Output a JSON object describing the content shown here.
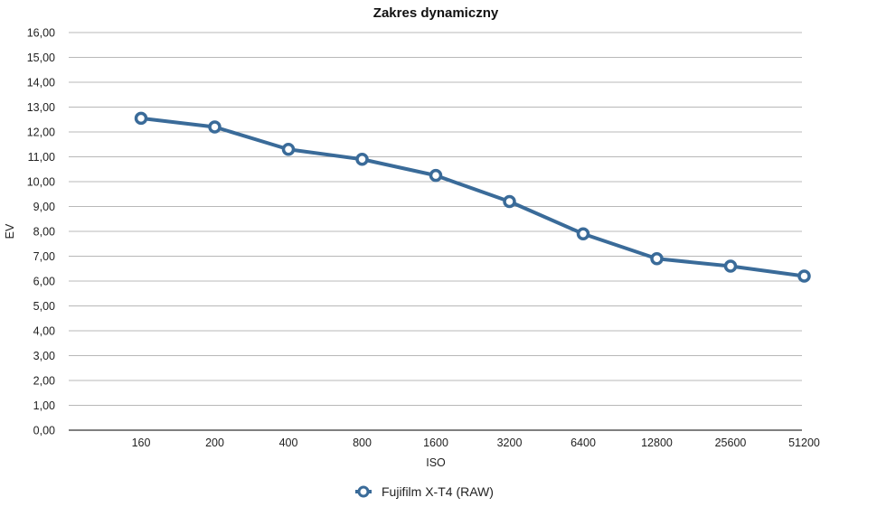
{
  "chart_data": {
    "type": "line",
    "title": "Zakres dynamiczny",
    "xlabel": "ISO",
    "ylabel": "EV",
    "categories": [
      "160",
      "200",
      "400",
      "800",
      "1600",
      "3200",
      "6400",
      "12800",
      "25600",
      "51200"
    ],
    "series": [
      {
        "name": "Fujifilm X-T4 (RAW)",
        "values": [
          12.55,
          12.2,
          11.3,
          10.9,
          10.25,
          9.2,
          7.9,
          6.9,
          6.6,
          6.2
        ],
        "color": "#3a6b99"
      }
    ],
    "ylim": [
      0,
      16
    ],
    "ystep": 1,
    "ytick_labels": [
      "0,00",
      "1,00",
      "2,00",
      "3,00",
      "4,00",
      "5,00",
      "6,00",
      "7,00",
      "8,00",
      "9,00",
      "10,00",
      "11,00",
      "12,00",
      "13,00",
      "14,00",
      "15,00",
      "16,00"
    ],
    "grid": true,
    "legend_position": "bottom-center"
  }
}
